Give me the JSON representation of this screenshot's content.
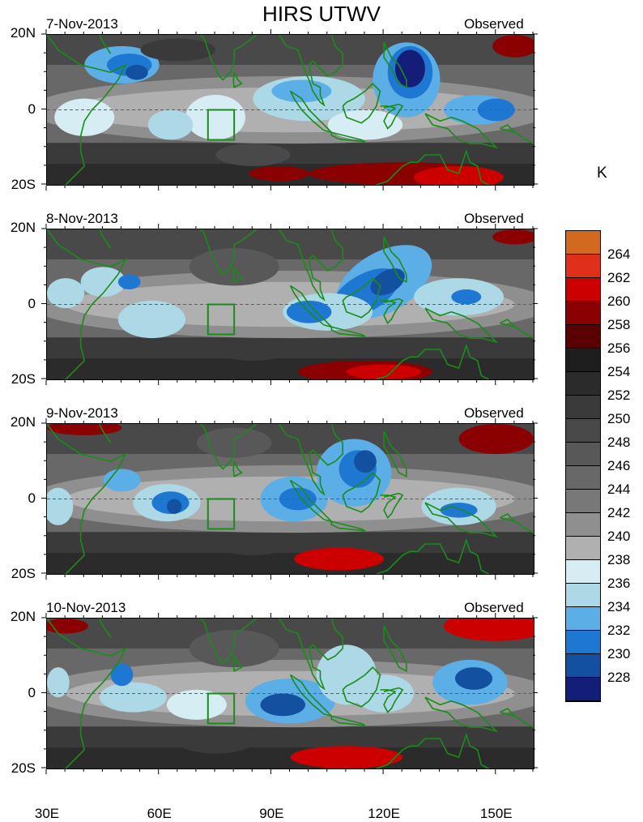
{
  "title": "HIRS UTWV",
  "unit": "K",
  "lat_labels": [
    "20N",
    "0",
    "20S"
  ],
  "lon_labels": [
    "30E",
    "60E",
    "90E",
    "120E",
    "150E"
  ],
  "lon_values": [
    30,
    60,
    90,
    120,
    150
  ],
  "lon_range": [
    30,
    160
  ],
  "lat_range": [
    -20,
    20
  ],
  "panels": [
    {
      "date": "7-Nov-2013",
      "label": "Observed"
    },
    {
      "date": "8-Nov-2013",
      "label": "Observed"
    },
    {
      "date": "9-Nov-2013",
      "label": "Observed"
    },
    {
      "date": "10-Nov-2013",
      "label": "Observed"
    }
  ],
  "colorbar": {
    "labels": [
      "264",
      "262",
      "260",
      "258",
      "256",
      "254",
      "252",
      "250",
      "248",
      "246",
      "244",
      "242",
      "240",
      "238",
      "236",
      "234",
      "232",
      "230",
      "228"
    ],
    "colors": [
      "#d2691e",
      "#e0301a",
      "#cc0000",
      "#8b0000",
      "#5a0000",
      "#1e1e1e",
      "#2b2b2b",
      "#3a3a3a",
      "#494949",
      "#585858",
      "#686868",
      "#787878",
      "#8f8f8f",
      "#b0b0b0",
      "#d6eef3",
      "#add8e6",
      "#5caee6",
      "#1e78d2",
      "#1450a0",
      "#141e78"
    ]
  },
  "colors": {
    "coast": "#1a8c1a",
    "equator": "#1a8c1a",
    "box": "#1a8c1a"
  }
}
